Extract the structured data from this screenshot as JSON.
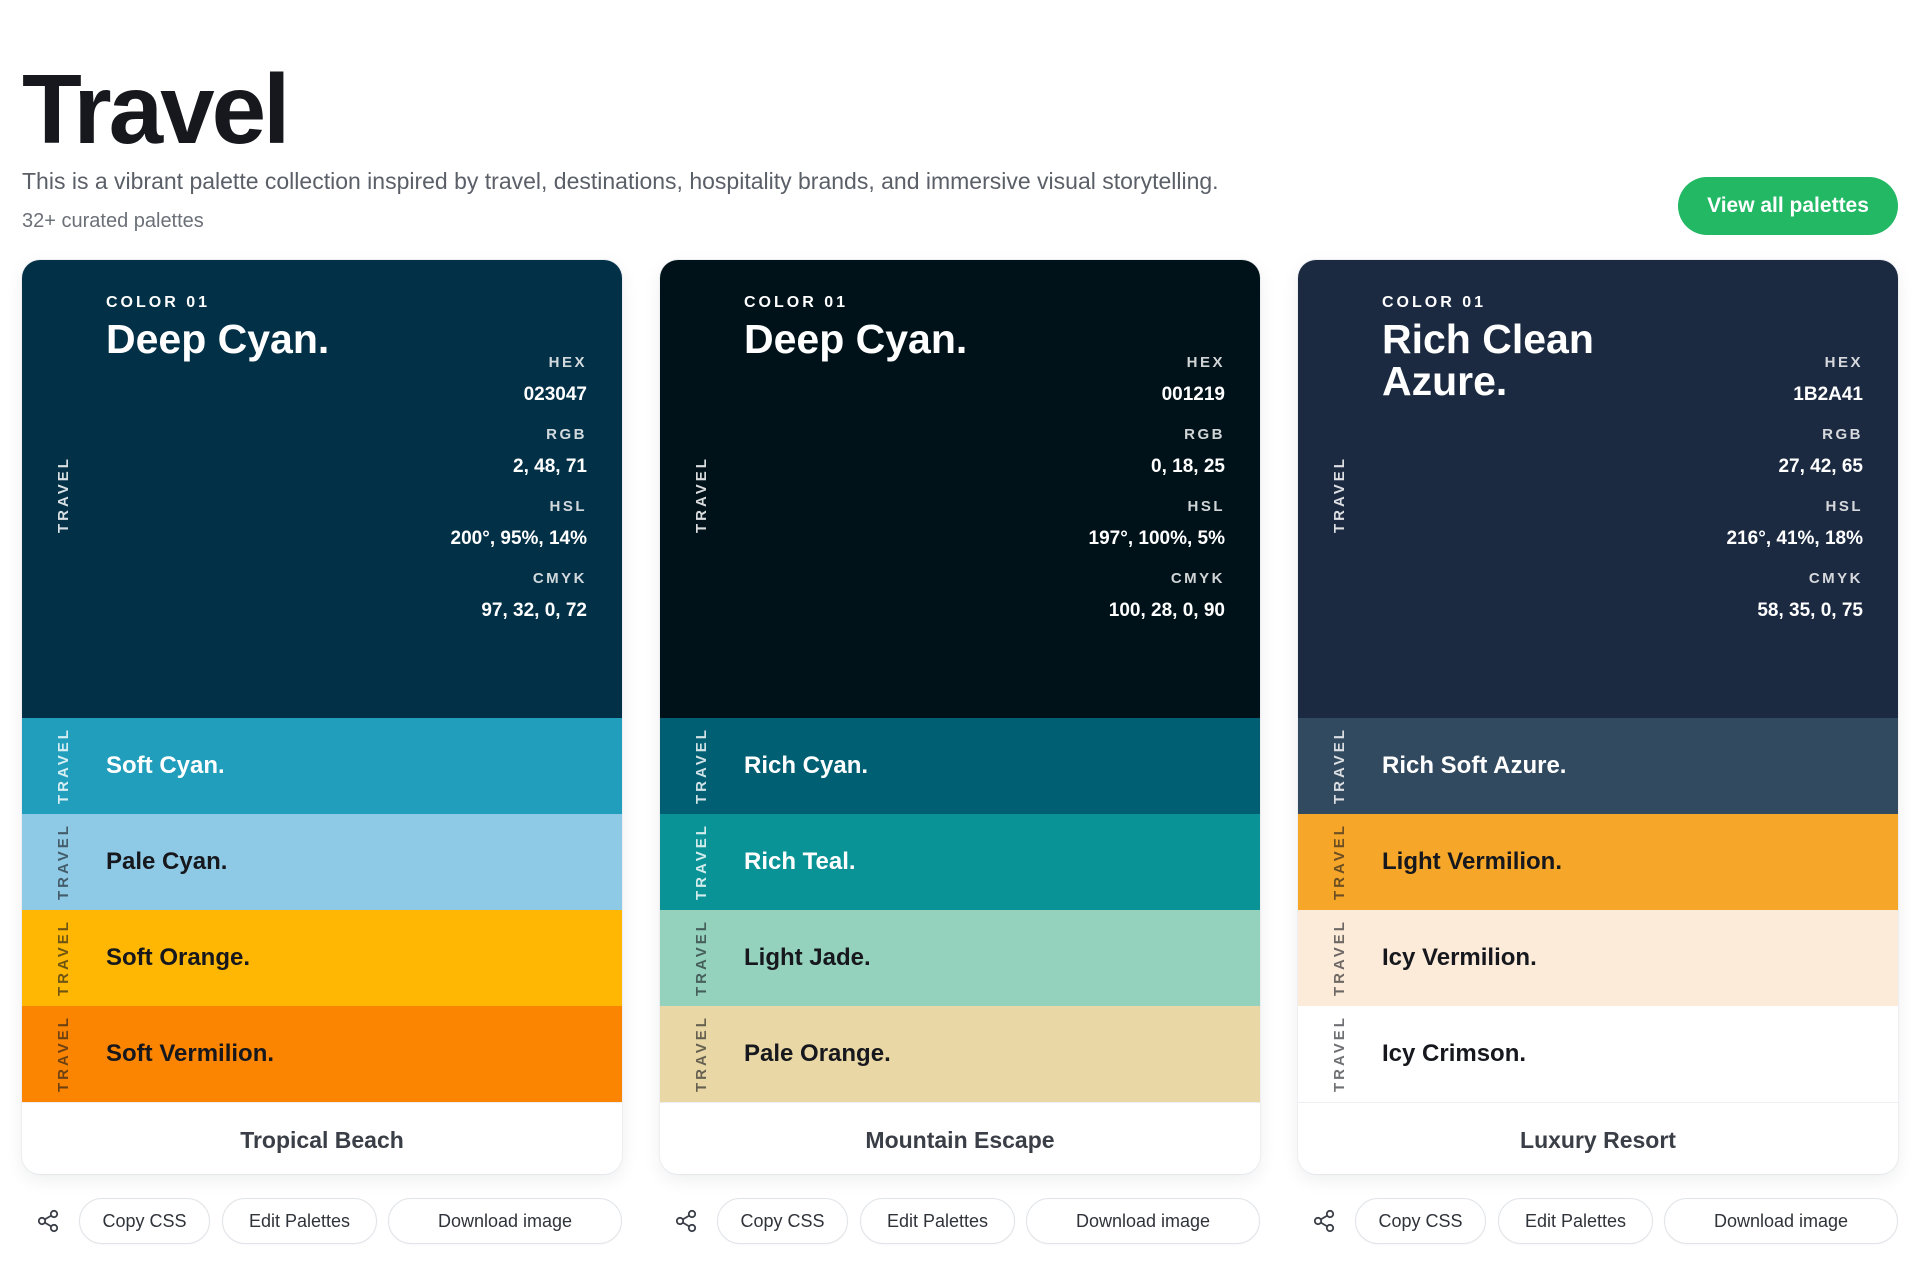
{
  "header": {
    "title": "Travel",
    "description": "This is a vibrant palette collection inspired by travel, destinations, hospitality brands, and immersive visual storytelling.",
    "count": "32+ curated palettes",
    "view_all_label": "View all palettes"
  },
  "colors": {
    "accent": "#22b864",
    "text": "#16181d",
    "muted": "#5a5f68"
  },
  "actions": {
    "share_icon": "share-icon",
    "copy_css": "Copy CSS",
    "edit": "Edit Palettes",
    "download": "Download image"
  },
  "palettes": [
    {
      "name": "Tropical Beach",
      "main": {
        "index_label": "COLOR 01",
        "name": "Deep Cyan.",
        "side_label": "TRAVEL",
        "bg": "#023047",
        "text_color": "#ffffff",
        "hex_label": "HEX",
        "hex": "023047",
        "rgb_label": "RGB",
        "rgb": "2, 48, 71",
        "hsl_label": "HSL",
        "hsl": "200°, 95%, 14%",
        "cmyk_label": "CMYK",
        "cmyk": "97, 32, 0, 72"
      },
      "rows": [
        {
          "name": "Soft Cyan.",
          "side_label": "TRAVEL",
          "bg": "#219EBC",
          "text_color": "#ffffff"
        },
        {
          "name": "Pale Cyan.",
          "side_label": "TRAVEL",
          "bg": "#8ECAE6",
          "text_color": "#16181d"
        },
        {
          "name": "Soft Orange.",
          "side_label": "TRAVEL",
          "bg": "#FFB703",
          "text_color": "#16181d"
        },
        {
          "name": "Soft Vermilion.",
          "side_label": "TRAVEL",
          "bg": "#FB8500",
          "text_color": "#16181d"
        }
      ]
    },
    {
      "name": "Mountain Escape",
      "main": {
        "index_label": "COLOR 01",
        "name": "Deep Cyan.",
        "side_label": "TRAVEL",
        "bg": "#001219",
        "text_color": "#ffffff",
        "hex_label": "HEX",
        "hex": "001219",
        "rgb_label": "RGB",
        "rgb": "0, 18, 25",
        "hsl_label": "HSL",
        "hsl": "197°, 100%, 5%",
        "cmyk_label": "CMYK",
        "cmyk": "100, 28, 0, 90"
      },
      "rows": [
        {
          "name": "Rich Cyan.",
          "side_label": "TRAVEL",
          "bg": "#005F73",
          "text_color": "#ffffff"
        },
        {
          "name": "Rich Teal.",
          "side_label": "TRAVEL",
          "bg": "#0A9396",
          "text_color": "#ffffff"
        },
        {
          "name": "Light Jade.",
          "side_label": "TRAVEL",
          "bg": "#94D2BD",
          "text_color": "#16181d"
        },
        {
          "name": "Pale Orange.",
          "side_label": "TRAVEL",
          "bg": "#E9D8A6",
          "text_color": "#16181d"
        }
      ]
    },
    {
      "name": "Luxury Resort",
      "main": {
        "index_label": "COLOR 01",
        "name": "Rich Clean Azure.",
        "side_label": "TRAVEL",
        "bg": "#1B2A41",
        "text_color": "#ffffff",
        "hex_label": "HEX",
        "hex": "1B2A41",
        "rgb_label": "RGB",
        "rgb": "27, 42, 65",
        "hsl_label": "HSL",
        "hsl": "216°, 41%, 18%",
        "cmyk_label": "CMYK",
        "cmyk": "58, 35, 0, 75"
      },
      "rows": [
        {
          "name": "Rich Soft Azure.",
          "side_label": "TRAVEL",
          "bg": "#324A5F",
          "text_color": "#ffffff"
        },
        {
          "name": "Light Vermilion.",
          "side_label": "TRAVEL",
          "bg": "#F6A72A",
          "text_color": "#16181d"
        },
        {
          "name": "Icy Vermilion.",
          "side_label": "TRAVEL",
          "bg": "#FDEBDA",
          "text_color": "#16181d"
        },
        {
          "name": "Icy Crimson.",
          "side_label": "TRAVEL",
          "bg": "#FFFFFF",
          "text_color": "#16181d"
        }
      ]
    }
  ]
}
